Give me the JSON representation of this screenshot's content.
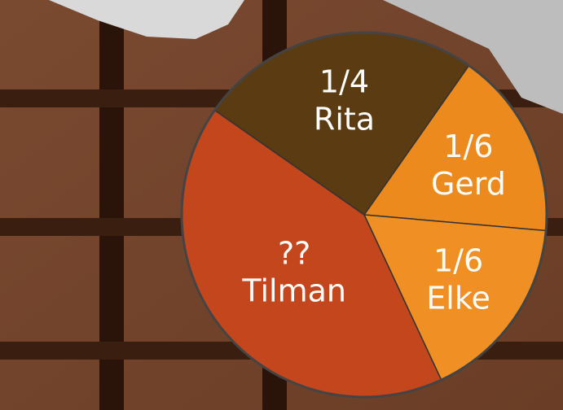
{
  "chart_data": {
    "type": "pie",
    "categories": [
      "Gerd",
      "Elke",
      "Tilman",
      "Rita"
    ],
    "values": [
      0.1667,
      0.1667,
      0.4167,
      0.25
    ],
    "value_labels": [
      "1/6",
      "1/6",
      "??",
      "1/4"
    ],
    "colors": [
      "#ec8a1e",
      "#ef8f24",
      "#c4461c",
      "#5b3b12"
    ]
  }
}
